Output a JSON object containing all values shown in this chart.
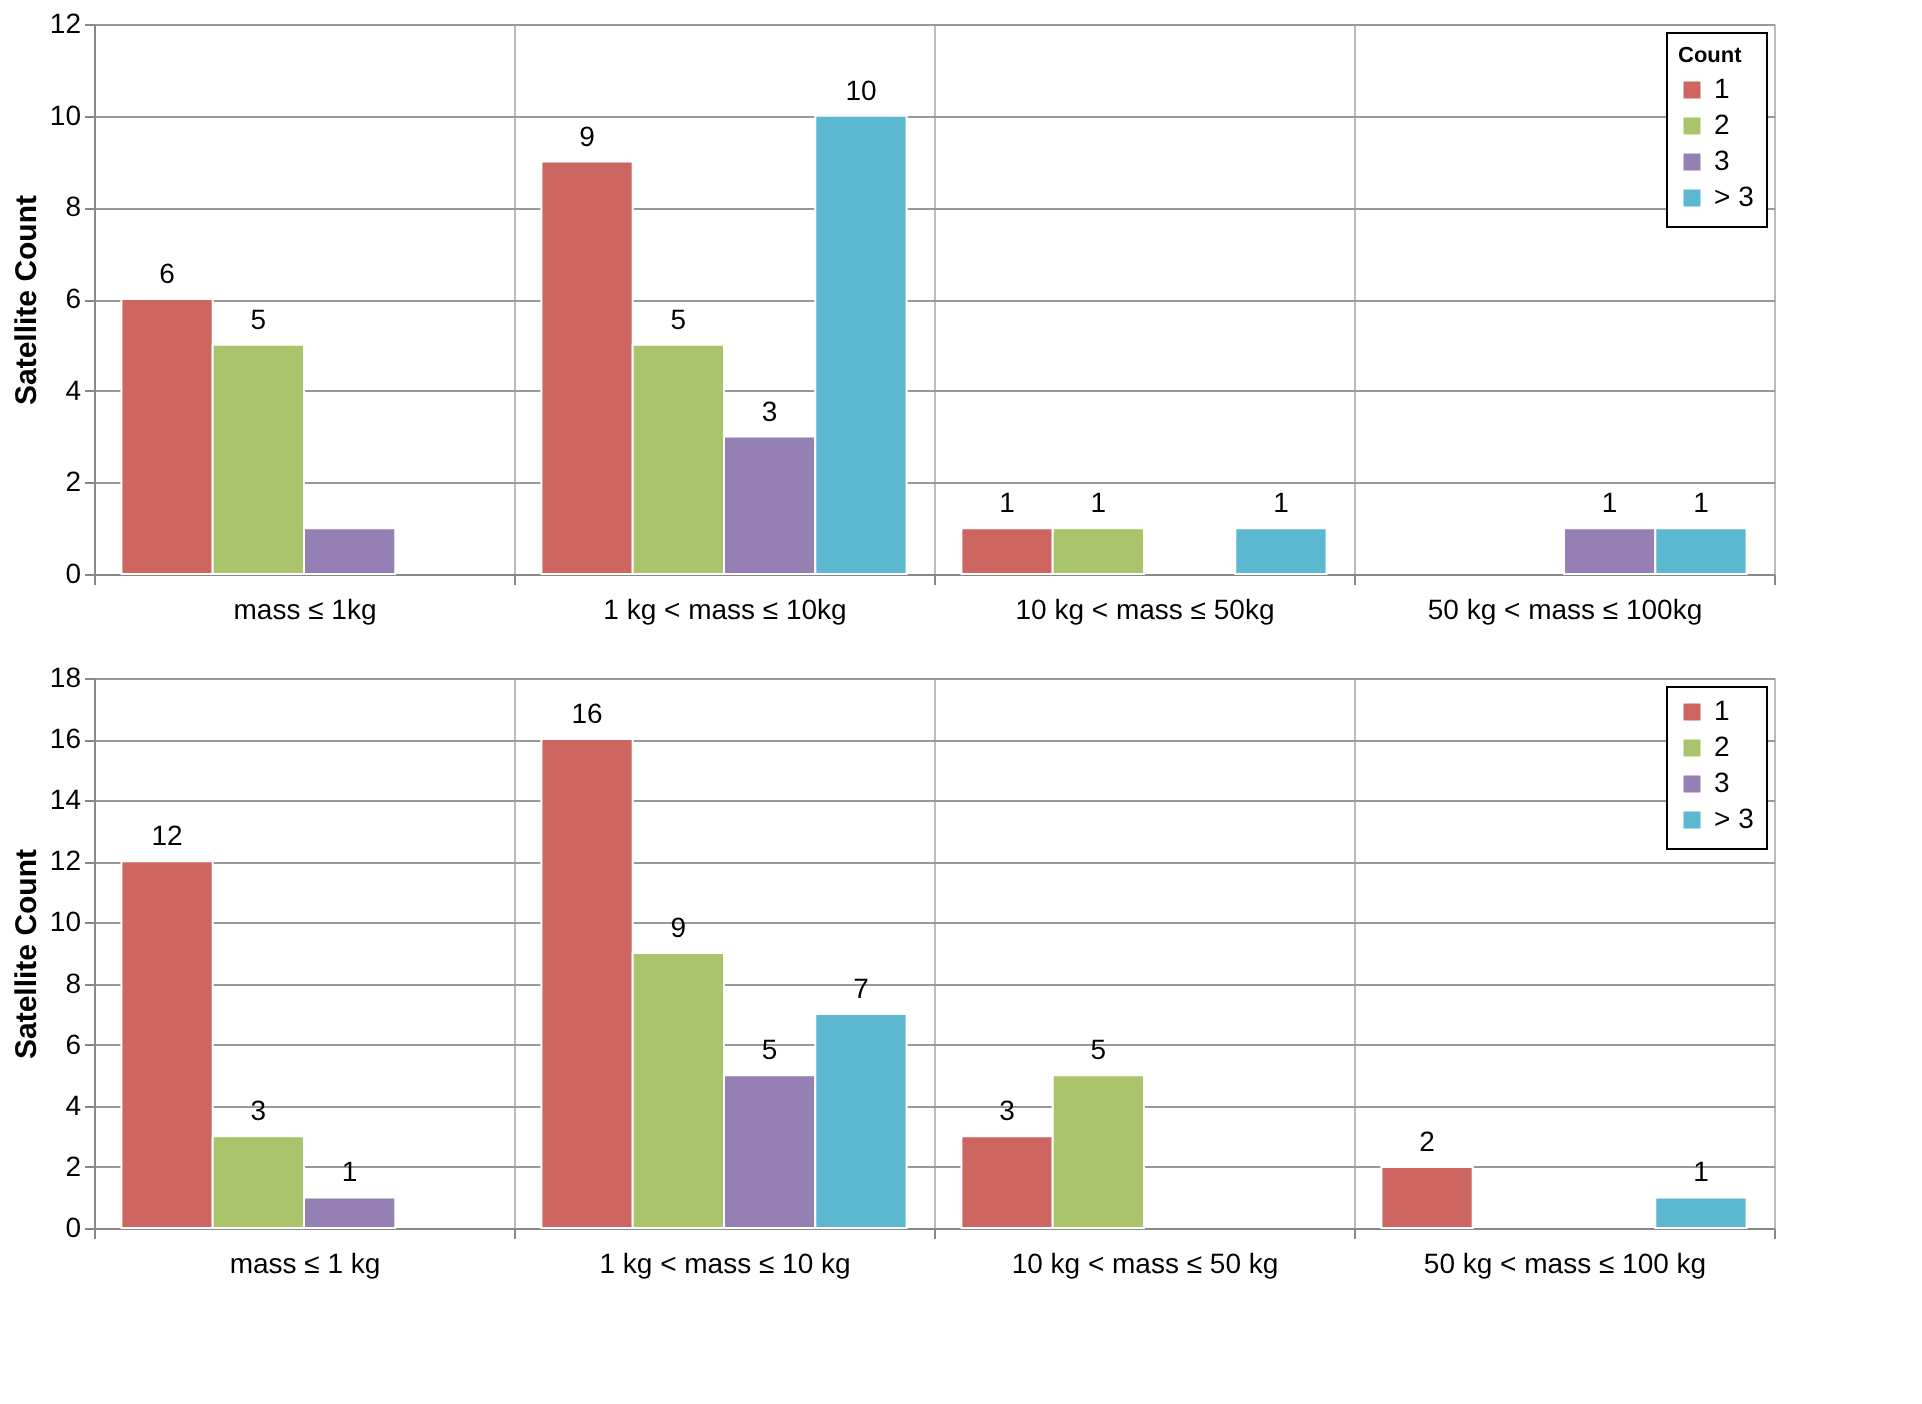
{
  "chart_data": [
    {
      "type": "bar",
      "ylabel": "Satellite Count",
      "legend_title": "Count",
      "categories": [
        "mass ≤ 1kg",
        "1 kg < mass ≤ 10kg",
        "10 kg < mass ≤ 50kg",
        "50 kg < mass ≤ 100kg"
      ],
      "ylim": [
        0,
        12
      ],
      "yticks": [
        0,
        2,
        4,
        6,
        8,
        10,
        12
      ],
      "grid": true,
      "legend": "top right",
      "series": [
        {
          "name": "1",
          "color": "#cd6660",
          "values": [
            6,
            9,
            1,
            null
          ],
          "value_labels": [
            "6",
            "9",
            "1",
            null
          ]
        },
        {
          "name": "2",
          "color": "#a9c46b",
          "values": [
            5,
            5,
            1,
            null
          ],
          "value_labels": [
            "5",
            "5",
            "1",
            null
          ]
        },
        {
          "name": "3",
          "color": "#9680b3",
          "values": [
            1,
            3,
            null,
            1
          ],
          "value_labels": [
            null,
            "3",
            null,
            "1"
          ]
        },
        {
          "name": "> 3",
          "color": "#5cb8d0",
          "values": [
            null,
            10,
            1,
            1
          ],
          "value_labels": [
            null,
            "10",
            "1",
            "1"
          ]
        }
      ]
    },
    {
      "type": "bar",
      "ylabel": "Satellite Count",
      "categories": [
        "mass ≤ 1 kg",
        "1 kg < mass ≤ 10 kg",
        "10 kg < mass ≤ 50 kg",
        "50 kg < mass ≤ 100 kg"
      ],
      "ylim": [
        0,
        18
      ],
      "yticks": [
        0,
        2,
        4,
        6,
        8,
        10,
        12,
        14,
        16,
        18
      ],
      "grid": true,
      "legend": "top right",
      "data_labels": true,
      "series": [
        {
          "name": "1",
          "color": "#cd6660",
          "values": [
            12,
            16,
            3,
            2
          ]
        },
        {
          "name": "2",
          "color": "#a9c46b",
          "values": [
            3,
            9,
            5,
            null
          ]
        },
        {
          "name": "3",
          "color": "#9680b3",
          "values": [
            1,
            5,
            null,
            null
          ]
        },
        {
          "name": "> 3",
          "color": "#5cb8d0",
          "values": [
            null,
            7,
            null,
            1
          ]
        }
      ]
    }
  ]
}
